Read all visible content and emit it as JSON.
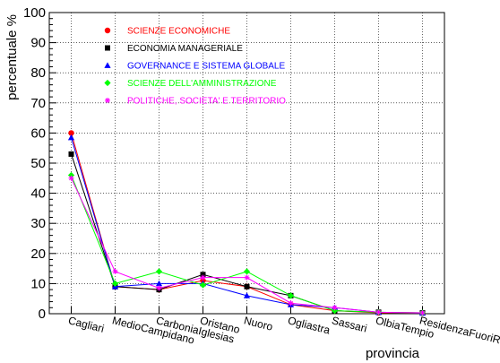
{
  "chart_data": {
    "type": "line",
    "xlabel": "provincia",
    "ylabel": "percentuale %",
    "ylim": [
      0,
      100
    ],
    "yticks": [
      0,
      10,
      20,
      30,
      40,
      50,
      60,
      70,
      80,
      90,
      100
    ],
    "grid": true,
    "legend_position": "top-left",
    "categories": [
      "Cagliari",
      "MedioCampidano",
      "CarboniaIglesias",
      "Oristano",
      "Nuoro",
      "Ogliastra",
      "Sassari",
      "OlbiaTempio",
      "ResidenzaFuoriRegione"
    ],
    "category_labels": [
      "Cagliari",
      "MedioCampidano",
      "CarboniaIglesias",
      "Oristano",
      "Nuoro",
      "Ogliastra",
      "Sassari",
      "OlbiaTempio",
      "ResidenzaFuoriRe"
    ],
    "series": [
      {
        "name": "SCIENZE ECONOMICHE",
        "color": "#ff0000",
        "marker": "circle",
        "values": [
          60,
          9,
          8,
          11,
          9,
          3,
          1,
          0.3,
          0.2
        ]
      },
      {
        "name": "ECONOMIA MANAGERIALE",
        "color": "#000000",
        "marker": "square",
        "values": [
          53,
          9,
          8,
          13,
          9,
          6,
          1,
          0.5,
          0.3
        ]
      },
      {
        "name": "GOVERNANCE E SISTEMA GLOBALE",
        "color": "#0000ff",
        "marker": "triangle",
        "values": [
          58.5,
          9,
          10,
          10,
          6,
          3,
          2,
          0.5,
          0.2
        ]
      },
      {
        "name": "SCIENZE DELL'AMMINISTRAZIONE",
        "color": "#00ff00",
        "marker": "diamond",
        "values": [
          46,
          10,
          14,
          9.5,
          14,
          6,
          1,
          0.5,
          0.3
        ]
      },
      {
        "name": "POLITICHE, SOCIETA' E TERRITORIO",
        "color": "#ff00ff",
        "marker": "star",
        "values": [
          45,
          14,
          8.5,
          12,
          12,
          3.5,
          2,
          0.5,
          0.3
        ]
      }
    ]
  }
}
